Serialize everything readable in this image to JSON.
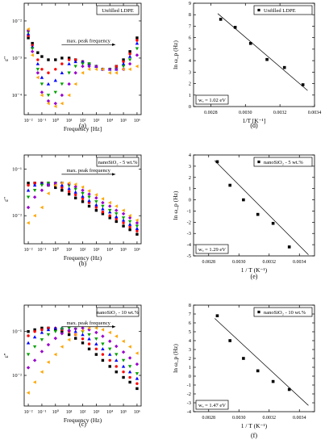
{
  "colors": {
    "series": [
      "#000000",
      "#ff0000",
      "#0000ff",
      "#00a000",
      "#9900cc",
      "#ffa500",
      "#00ccff",
      "#cc00cc",
      "#666666",
      "#8b0000"
    ],
    "axis": "#000000"
  },
  "chart_data": [
    {
      "id": "a",
      "type": "scatter",
      "panel_label": "(a)",
      "title": "",
      "legend": "Unfilled LDPE",
      "xlabel": "Frequency [Hz]",
      "ylabel": "ε''",
      "xscale": "log",
      "yscale": "log",
      "xlim": [
        0.005,
        2000000
      ],
      "ylim": [
        3e-05,
        0.03
      ],
      "xticks": [
        0.01,
        0.1,
        1,
        10,
        100,
        1000,
        10000,
        100000,
        1000000
      ],
      "xticklabels": [
        "10⁻²",
        "10⁻¹",
        "10⁰",
        "10¹",
        "10²",
        "10³",
        "10⁴",
        "10⁵",
        "10⁶"
      ],
      "yticks": [
        0.0001,
        0.001,
        0.01
      ],
      "yticklabels": [
        "10⁻⁴",
        "10⁻³",
        "10⁻²"
      ],
      "annotation": "max. peak frequency",
      "series": [
        {
          "x": [
            0.01,
            0.02,
            0.05,
            0.1,
            0.3,
            1,
            3,
            10,
            30,
            100,
            300,
            1000,
            3000,
            10000,
            30000,
            100000,
            300000,
            1000000
          ],
          "y": [
            0.0035,
            0.0025,
            0.0014,
            0.0011,
            0.0009,
            0.0009,
            0.001,
            0.001,
            0.0009,
            0.0008,
            0.0007,
            0.0006,
            0.0005,
            0.0005,
            0.0006,
            0.0009,
            0.0015,
            0.0035
          ]
        },
        {
          "x": [
            0.01,
            0.02,
            0.05,
            0.1,
            0.3,
            1,
            3,
            10,
            30,
            100,
            300,
            1000,
            3000,
            10000,
            30000,
            100000,
            300000,
            1000000
          ],
          "y": [
            0.004,
            0.0022,
            0.0009,
            0.0005,
            0.0004,
            0.0005,
            0.0007,
            0.0009,
            0.0009,
            0.0008,
            0.0007,
            0.0006,
            0.0005,
            0.0005,
            0.0006,
            0.0008,
            0.0013,
            0.003
          ]
        },
        {
          "x": [
            0.01,
            0.02,
            0.05,
            0.1,
            0.3,
            1,
            3,
            10,
            30,
            100,
            300,
            1000,
            3000,
            10000,
            30000,
            100000,
            300000,
            1000000
          ],
          "y": [
            0.0045,
            0.002,
            0.0007,
            0.0003,
            0.0002,
            0.00025,
            0.0004,
            0.0007,
            0.0008,
            0.0008,
            0.0007,
            0.0006,
            0.0005,
            0.0005,
            0.0005,
            0.0007,
            0.0011,
            0.0025
          ]
        },
        {
          "x": [
            0.01,
            0.02,
            0.05,
            0.1,
            0.3,
            1,
            3,
            10,
            30,
            100,
            300,
            1000,
            3000,
            10000,
            30000,
            100000,
            300000,
            1000000
          ],
          "y": [
            0.005,
            0.0018,
            0.0005,
            0.0002,
            0.0001,
            0.00012,
            0.0002,
            0.0004,
            0.0006,
            0.0007,
            0.0007,
            0.0006,
            0.0005,
            0.0005,
            0.0005,
            0.0006,
            0.0009,
            0.0018
          ]
        },
        {
          "x": [
            0.01,
            0.02,
            0.05,
            0.1,
            0.3,
            1,
            3,
            10,
            30,
            100,
            300,
            1000,
            3000,
            10000,
            30000,
            100000,
            300000,
            1000000
          ],
          "y": [
            0.0055,
            0.0015,
            0.0004,
            0.00012,
            7e-05,
            6e-05,
            0.0001,
            0.0002,
            0.0004,
            0.0006,
            0.0006,
            0.0006,
            0.0005,
            0.0005,
            0.0005,
            0.0005,
            0.0007,
            0.0012
          ]
        },
        {
          "x": [
            0.01,
            0.02,
            0.05,
            0.1,
            0.3,
            1,
            3,
            10,
            30,
            100,
            300,
            1000,
            3000,
            10000,
            30000,
            100000,
            300000,
            1000000
          ],
          "y": [
            0.006,
            0.0012,
            0.0003,
            0.0001,
            6e-05,
            5e-05,
            6e-05,
            0.0001,
            0.0002,
            0.0004,
            0.0005,
            0.0005,
            0.0005,
            0.0004,
            0.0004,
            0.0005,
            0.0005,
            0.0006
          ]
        }
      ]
    },
    {
      "id": "d",
      "type": "scatter",
      "panel_label": "(d)",
      "title": "",
      "legend": "Unfilled LDPE",
      "xlabel": "1/T [K⁻¹]",
      "ylabel": "ln ω_p (Hz)",
      "xlim": [
        0.0027,
        0.0034
      ],
      "ylim": [
        0,
        9
      ],
      "xticks": [
        0.0028,
        0.003,
        0.0032,
        0.0034
      ],
      "xticklabels": [
        "0.0028",
        "0.0030",
        "0.0032",
        "0.0034"
      ],
      "yticks": [
        0,
        1,
        2,
        3,
        4,
        5,
        6,
        7,
        8,
        9
      ],
      "yticklabels": [
        "0",
        "1",
        "2",
        "3",
        "4",
        "5",
        "6",
        "7",
        "8",
        "9"
      ],
      "annotation": "wₐ = 1.02 eV",
      "points": {
        "x": [
          0.002857,
          0.002941,
          0.00303,
          0.003125,
          0.003226,
          0.003333
        ],
        "y": [
          7.6,
          6.9,
          5.5,
          4.1,
          3.4,
          1.9
        ]
      },
      "fit": {
        "x": [
          0.00284,
          0.00336
        ],
        "y": [
          8.1,
          1.4
        ]
      }
    },
    {
      "id": "b",
      "type": "scatter",
      "panel_label": "(b)",
      "title": "",
      "legend": "nanoSiO₂ - 5 wt.%",
      "xlabel": "Frequency (Hz)",
      "ylabel": "ε''",
      "xscale": "log",
      "yscale": "log",
      "xlim": [
        0.005,
        2000000
      ],
      "ylim": [
        0.0025,
        0.2
      ],
      "xticks": [
        0.01,
        0.1,
        1,
        10,
        100,
        1000,
        10000,
        100000,
        1000000
      ],
      "xticklabels": [
        "10⁻²",
        "10⁻¹",
        "10⁰",
        "10¹",
        "10²",
        "10³",
        "10⁴",
        "10⁵",
        "10⁶"
      ],
      "yticks": [
        0.01,
        0.1
      ],
      "yticklabels": [
        "10⁻²",
        "10⁻¹"
      ],
      "annotation": "max. peak frequency",
      "series": [
        {
          "x": [
            0.01,
            0.03,
            0.1,
            0.3,
            1,
            3,
            10,
            30,
            100,
            300,
            1000,
            3000,
            10000,
            30000,
            100000,
            300000,
            1000000
          ],
          "y": [
            0.05,
            0.05,
            0.05,
            0.045,
            0.04,
            0.035,
            0.029,
            0.024,
            0.02,
            0.016,
            0.013,
            0.011,
            0.009,
            0.0075,
            0.006,
            0.005,
            0.004
          ]
        },
        {
          "x": [
            0.01,
            0.03,
            0.1,
            0.3,
            1,
            3,
            10,
            30,
            100,
            300,
            1000,
            3000,
            10000,
            30000,
            100000,
            300000,
            1000000
          ],
          "y": [
            0.045,
            0.05,
            0.05,
            0.05,
            0.045,
            0.04,
            0.033,
            0.028,
            0.023,
            0.019,
            0.015,
            0.012,
            0.01,
            0.0085,
            0.007,
            0.0057,
            0.0047
          ]
        },
        {
          "x": [
            0.01,
            0.03,
            0.1,
            0.3,
            1,
            3,
            10,
            30,
            100,
            300,
            1000,
            3000,
            10000,
            30000,
            100000,
            300000,
            1000000
          ],
          "y": [
            0.035,
            0.045,
            0.05,
            0.05,
            0.05,
            0.045,
            0.038,
            0.032,
            0.026,
            0.021,
            0.017,
            0.014,
            0.012,
            0.0095,
            0.008,
            0.0065,
            0.0053
          ]
        },
        {
          "x": [
            0.01,
            0.03,
            0.1,
            0.3,
            1,
            3,
            10,
            30,
            100,
            300,
            1000,
            3000,
            10000,
            30000,
            100000,
            300000,
            1000000
          ],
          "y": [
            0.025,
            0.035,
            0.045,
            0.05,
            0.05,
            0.05,
            0.044,
            0.037,
            0.03,
            0.025,
            0.02,
            0.016,
            0.013,
            0.011,
            0.009,
            0.0075,
            0.006
          ]
        },
        {
          "x": [
            0.01,
            0.03,
            0.1,
            0.3,
            1,
            3,
            10,
            30,
            100,
            300,
            1000,
            3000,
            10000,
            30000,
            100000,
            300000,
            1000000
          ],
          "y": [
            0.015,
            0.025,
            0.035,
            0.045,
            0.05,
            0.05,
            0.048,
            0.042,
            0.035,
            0.029,
            0.024,
            0.019,
            0.016,
            0.013,
            0.011,
            0.009,
            0.007
          ]
        },
        {
          "x": [
            0.01,
            0.03,
            0.1,
            0.3,
            1,
            3,
            10,
            30,
            100,
            300,
            1000,
            3000,
            10000,
            30000,
            100000,
            300000,
            1000000
          ],
          "y": [
            0.007,
            0.01,
            0.015,
            0.03,
            0.045,
            0.05,
            0.05,
            0.047,
            0.041,
            0.034,
            0.028,
            0.023,
            0.019,
            0.016,
            0.013,
            0.01,
            0.008
          ]
        }
      ]
    },
    {
      "id": "e",
      "type": "scatter",
      "panel_label": "(e)",
      "title": "",
      "legend": "nanoSiO₂ - 5 wt.%",
      "xlabel": "1 / T (K⁻¹)",
      "ylabel": "ln ω_p (Hz)",
      "xlim": [
        0.0027,
        0.0035
      ],
      "ylim": [
        -5,
        4
      ],
      "xticks": [
        0.0028,
        0.003,
        0.0032,
        0.0034
      ],
      "xticklabels": [
        "0.0028",
        "0.0030",
        "0.0032",
        "0.0034"
      ],
      "yticks": [
        -5,
        -4,
        -3,
        -2,
        -1,
        0,
        1,
        2,
        3,
        4
      ],
      "yticklabels": [
        "-5",
        "-4",
        "-3",
        "-2",
        "-1",
        "0",
        "1",
        "2",
        "3",
        "4"
      ],
      "annotation": "wₐ = 1.29 eV",
      "points": {
        "x": [
          0.002857,
          0.002941,
          0.00303,
          0.003125,
          0.003226,
          0.003333
        ],
        "y": [
          3.4,
          1.3,
          0.0,
          -1.3,
          -2.1,
          -4.2
        ]
      },
      "fit": {
        "x": [
          0.00284,
          0.00346
        ],
        "y": [
          3.5,
          -4.9
        ]
      }
    },
    {
      "id": "c",
      "type": "scatter",
      "panel_label": "(c)",
      "title": "",
      "legend": "nanoSiO₂ - 10 wt.%",
      "xlabel": "Frequency (Hz)",
      "ylabel": "ε''",
      "xscale": "log",
      "yscale": "log",
      "xlim": [
        0.005,
        2000000
      ],
      "ylim": [
        0.002,
        0.4
      ],
      "xticks": [
        0.01,
        0.1,
        1,
        10,
        100,
        1000,
        10000,
        100000,
        1000000
      ],
      "xticklabels": [
        "10⁻²",
        "10⁻¹",
        "10⁰",
        "10¹",
        "10²",
        "10³",
        "10⁴",
        "10⁵",
        "10⁶"
      ],
      "yticks": [
        0.01,
        0.1
      ],
      "yticklabels": [
        "10⁻²",
        "10⁻¹"
      ],
      "annotation": "max. peak frequency",
      "series": [
        {
          "x": [
            0.01,
            0.03,
            0.1,
            0.3,
            1,
            3,
            10,
            30,
            100,
            300,
            1000,
            3000,
            10000,
            30000,
            100000,
            300000,
            1000000
          ],
          "y": [
            0.1,
            0.11,
            0.12,
            0.12,
            0.11,
            0.1,
            0.085,
            0.07,
            0.055,
            0.04,
            0.03,
            0.022,
            0.016,
            0.012,
            0.009,
            0.007,
            0.005
          ]
        },
        {
          "x": [
            0.01,
            0.03,
            0.1,
            0.3,
            1,
            3,
            10,
            30,
            100,
            300,
            1000,
            3000,
            10000,
            30000,
            100000,
            300000,
            1000000
          ],
          "y": [
            0.08,
            0.1,
            0.11,
            0.12,
            0.12,
            0.11,
            0.1,
            0.085,
            0.068,
            0.052,
            0.04,
            0.03,
            0.022,
            0.016,
            0.012,
            0.009,
            0.0065
          ]
        },
        {
          "x": [
            0.01,
            0.03,
            0.1,
            0.3,
            1,
            3,
            10,
            30,
            100,
            300,
            1000,
            3000,
            10000,
            30000,
            100000,
            300000,
            1000000
          ],
          "y": [
            0.055,
            0.075,
            0.095,
            0.11,
            0.12,
            0.12,
            0.11,
            0.1,
            0.085,
            0.068,
            0.052,
            0.04,
            0.03,
            0.022,
            0.016,
            0.012,
            0.0085
          ]
        },
        {
          "x": [
            0.01,
            0.03,
            0.1,
            0.3,
            1,
            3,
            10,
            30,
            100,
            300,
            1000,
            3000,
            10000,
            30000,
            100000,
            300000,
            1000000
          ],
          "y": [
            0.03,
            0.045,
            0.065,
            0.085,
            0.1,
            0.115,
            0.12,
            0.115,
            0.1,
            0.085,
            0.068,
            0.052,
            0.04,
            0.03,
            0.022,
            0.016,
            0.011
          ]
        },
        {
          "x": [
            0.01,
            0.03,
            0.1,
            0.3,
            1,
            3,
            10,
            30,
            100,
            300,
            1000,
            3000,
            10000,
            30000,
            100000,
            300000,
            1000000
          ],
          "y": [
            0.015,
            0.022,
            0.035,
            0.05,
            0.07,
            0.09,
            0.105,
            0.115,
            0.12,
            0.11,
            0.095,
            0.078,
            0.06,
            0.046,
            0.034,
            0.025,
            0.018
          ]
        },
        {
          "x": [
            0.01,
            0.03,
            0.1,
            0.3,
            1,
            3,
            10,
            30,
            100,
            300,
            1000,
            3000,
            10000,
            30000,
            100000,
            300000,
            1000000
          ],
          "y": [
            0.004,
            0.007,
            0.012,
            0.02,
            0.03,
            0.045,
            0.065,
            0.085,
            0.105,
            0.12,
            0.12,
            0.11,
            0.095,
            0.078,
            0.06,
            0.045,
            0.032
          ]
        }
      ]
    },
    {
      "id": "f",
      "type": "scatter",
      "panel_label": "(f)",
      "title": "",
      "legend": "nanoSiO₂ - 10 wt.%",
      "xlabel": "1 / T (K⁻¹)",
      "ylabel": "ln ω_p (Hz)",
      "xlim": [
        0.0027,
        0.0035
      ],
      "ylim": [
        -4,
        8
      ],
      "xticks": [
        0.0028,
        0.003,
        0.0032,
        0.0034
      ],
      "xticklabels": [
        "0.0028",
        "0.0030",
        "0.0032",
        "0.0034"
      ],
      "yticks": [
        -4,
        -3,
        -2,
        -1,
        0,
        1,
        2,
        3,
        4,
        5,
        6,
        7,
        8
      ],
      "yticklabels": [
        "-4",
        "-3",
        "-2",
        "-1",
        "0",
        "1",
        "2",
        "3",
        "4",
        "5",
        "6",
        "7",
        "8"
      ],
      "annotation": "wₐ = 1.47 eV",
      "points": {
        "x": [
          0.002857,
          0.002941,
          0.00303,
          0.003125,
          0.003226,
          0.003333
        ],
        "y": [
          6.8,
          4.0,
          2.0,
          0.6,
          -0.6,
          -1.5
        ]
      },
      "fit": {
        "x": [
          0.00284,
          0.00346
        ],
        "y": [
          6.5,
          -3.3
        ]
      }
    }
  ]
}
